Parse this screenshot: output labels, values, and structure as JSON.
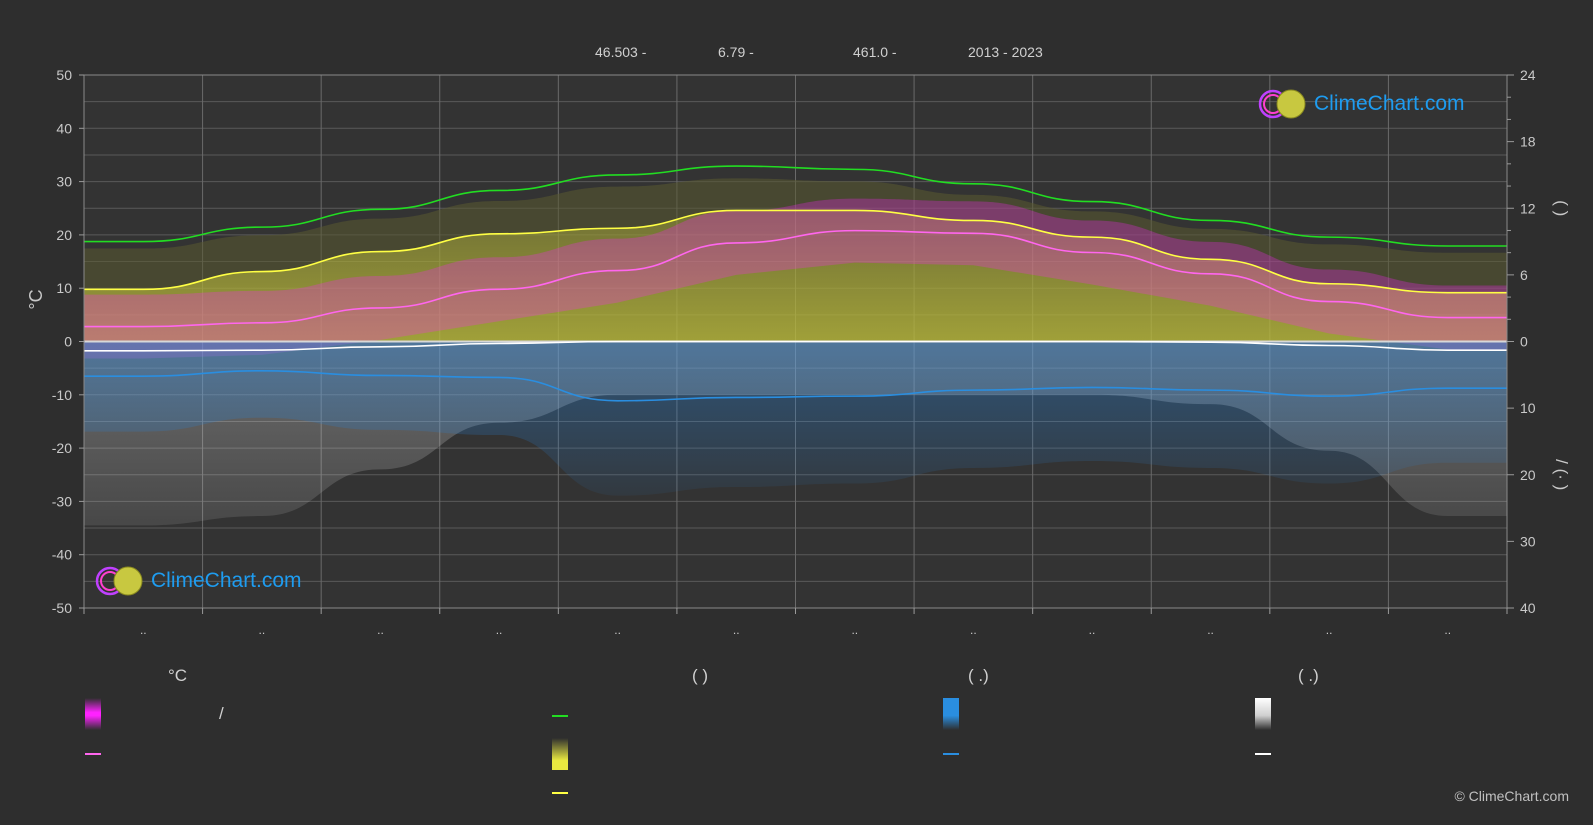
{
  "header": {
    "lat": "46.503 -",
    "lon": "6.79 -",
    "elev": "461.0 -",
    "years": "2013 - 2023"
  },
  "copyright": "© ClimeChart.com",
  "logo_text": "ClimeChart.com",
  "legend": {
    "titles": [
      "°C",
      "(          )",
      "(   .)",
      "(   .)"
    ],
    "slash": "/"
  },
  "colors": {
    "background": "#2e2e2e",
    "daylight": "#22dd22",
    "sunshine": "#e8e840",
    "max_temp_line": "#ffff44",
    "mean_temp_line": "#ff66ee",
    "temp_band": "#ff22ff",
    "precip_line": "#2a8ee0",
    "precip_bar": "#2a7fd0",
    "snow_line": "#ffffff",
    "brand_blue": "#1e9cf0"
  },
  "icons": [
    "climechart-logo-icon"
  ],
  "chart_data": {
    "type": "line",
    "months": [
      "..",
      "..",
      "..",
      "..",
      "..",
      "..",
      "..",
      "..",
      "..",
      "..",
      "..",
      ".."
    ],
    "x": [
      1,
      2,
      3,
      4,
      5,
      6,
      7,
      8,
      9,
      10,
      11,
      12
    ],
    "left_axis": {
      "label": "°C",
      "ylim": [
        -50,
        50
      ],
      "ticks": [
        50,
        40,
        30,
        20,
        10,
        0,
        -10,
        -20,
        -30,
        -40,
        -50
      ]
    },
    "right_axis_top": {
      "label": "(   )",
      "ylim": [
        0,
        24
      ],
      "ticks": [
        24,
        18,
        12,
        6,
        0
      ]
    },
    "right_axis_bottom": {
      "label": "/   (·   )",
      "ylim": [
        0,
        40
      ],
      "ticks": [
        10,
        20,
        30,
        40
      ]
    },
    "series": [
      {
        "key": "daylight",
        "axis": "hours",
        "values": [
          9.0,
          10.3,
          11.9,
          13.6,
          15.0,
          15.8,
          15.5,
          14.2,
          12.6,
          10.9,
          9.4,
          8.6
        ]
      },
      {
        "key": "sunshine",
        "axis": "hours",
        "values": [
          4.7,
          6.3,
          8.1,
          9.7,
          10.2,
          11.8,
          11.8,
          10.9,
          9.4,
          7.4,
          5.2,
          4.4
        ]
      },
      {
        "key": "mean_temp",
        "axis": "celsius",
        "values": [
          2.8,
          3.5,
          6.3,
          9.8,
          13.3,
          18.5,
          20.8,
          20.3,
          16.7,
          12.7,
          7.5,
          4.5
        ]
      },
      {
        "key": "precip",
        "axis": "mm",
        "values": [
          5.2,
          4.4,
          5.1,
          5.4,
          8.9,
          8.4,
          8.2,
          7.3,
          6.9,
          7.3,
          8.2,
          7.0
        ]
      },
      {
        "key": "snow",
        "axis": "mm",
        "values": [
          1.4,
          1.3,
          0.8,
          0.3,
          0.0,
          0.0,
          0.0,
          0.0,
          0.0,
          0.1,
          0.6,
          1.3
        ]
      }
    ],
    "grid": true
  }
}
